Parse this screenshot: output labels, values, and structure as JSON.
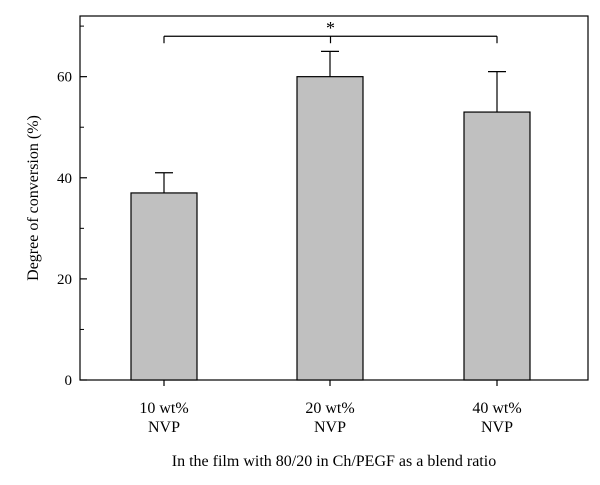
{
  "chart_data": {
    "type": "bar",
    "title": "",
    "xlabel": "In the film with 80/20 in Ch/PEGF as a blend ratio",
    "ylabel": "Degree of conversion (%)",
    "categories": [
      [
        "10 wt%",
        "NVP"
      ],
      [
        "20 wt%",
        "NVP"
      ],
      [
        "40 wt%",
        "NVP"
      ]
    ],
    "values": [
      37,
      60,
      53
    ],
    "error_upper": [
      41,
      65,
      61
    ],
    "ylim": [
      0,
      72
    ],
    "yticks": [
      0,
      20,
      40,
      60
    ],
    "grid": false,
    "bar_color": "#c0c0c0",
    "significance": {
      "from_bar": 0,
      "to_bar": 2,
      "y": 68,
      "label": "*"
    }
  }
}
